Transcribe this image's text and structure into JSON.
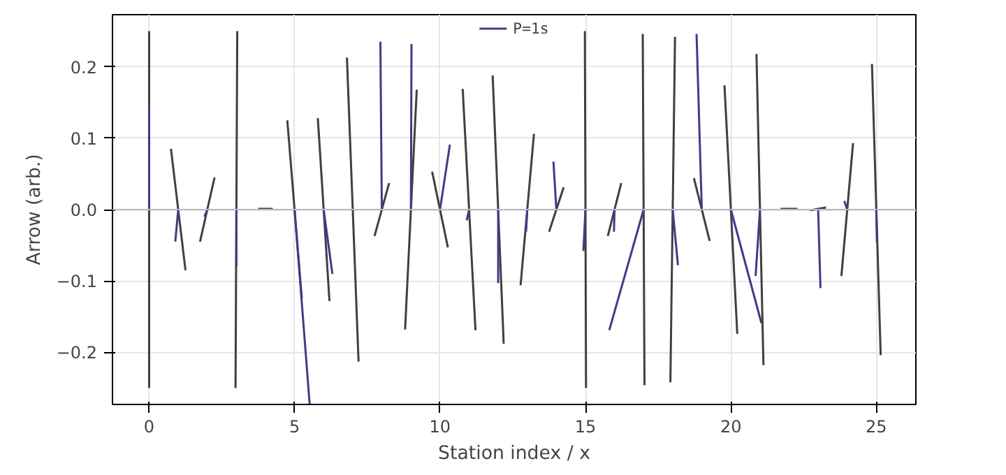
{
  "chart_data": {
    "type": "line",
    "xlabel": "Station index / x",
    "ylabel": "Arrow (arb.)",
    "xlim": [
      -1.26,
      26.36
    ],
    "ylim": [
      -0.273,
      0.273
    ],
    "xticks": [
      0,
      5,
      10,
      15,
      20,
      25
    ],
    "yticks": [
      {
        "value": -0.2,
        "label": "−0.2"
      },
      {
        "value": -0.1,
        "label": "−0.1"
      },
      {
        "value": 0.0,
        "label": "0.0"
      },
      {
        "value": 0.1,
        "label": "0.1"
      },
      {
        "value": 0.2,
        "label": "0.2"
      }
    ],
    "grid": true,
    "legend": "top",
    "marker": "none",
    "line_style": "solid",
    "ref_lines": [
      {
        "axis": "y",
        "value": 0,
        "color": "#bbbbbb"
      }
    ],
    "series": [
      {
        "color": "#404040",
        "x": [
          0,
          0,
          null,
          0.75,
          1.25,
          null,
          1.75,
          2.25,
          null,
          2.97,
          3.03,
          null,
          3.75,
          4.25,
          null,
          5.25,
          4.75,
          null,
          6.2,
          5.8,
          null,
          7.2,
          6.8,
          null,
          7.75,
          8.25,
          null,
          8.8,
          9.2,
          null,
          10.27,
          9.73,
          null,
          11.22,
          10.78,
          null,
          12.19,
          11.81,
          null,
          12.77,
          13.23,
          null,
          13.75,
          14.25,
          null,
          15.02,
          14.98,
          null,
          15.77,
          16.23,
          null,
          17.03,
          16.97,
          null,
          17.92,
          18.08,
          null,
          19.27,
          18.73,
          null,
          20.22,
          19.78,
          null,
          21.12,
          20.88,
          null,
          21.71,
          22.29,
          null,
          22.73,
          23.27,
          null,
          23.8,
          24.2,
          null,
          25.15,
          24.85
        ],
        "values": [
          -0.25,
          0.25,
          null,
          0.085,
          -0.085,
          null,
          -0.045,
          0.045,
          null,
          -0.25,
          0.25,
          null,
          0.001,
          0.001,
          null,
          -0.125,
          0.125,
          null,
          -0.128,
          0.128,
          null,
          -0.213,
          0.213,
          null,
          -0.037,
          0.037,
          null,
          -0.168,
          0.168,
          null,
          -0.053,
          0.053,
          null,
          -0.169,
          0.169,
          null,
          -0.188,
          0.188,
          null,
          -0.106,
          0.106,
          null,
          -0.031,
          0.031,
          null,
          -0.25,
          0.25,
          null,
          -0.037,
          0.037,
          null,
          -0.246,
          0.246,
          null,
          -0.242,
          0.242,
          null,
          -0.044,
          0.044,
          null,
          -0.174,
          0.174,
          null,
          -0.218,
          0.218,
          null,
          0.001,
          0.001,
          null,
          -0.001,
          0.003,
          null,
          -0.093,
          0.093,
          null,
          -0.204,
          0.204
        ]
      },
      {
        "name": "P=1s",
        "color": "#433a88",
        "x": [
          0,
          0,
          null,
          1,
          0.9,
          null,
          2,
          1.9,
          null,
          3,
          3,
          null,
          5,
          5.52,
          null,
          6,
          6.3,
          null,
          8,
          7.95,
          null,
          9,
          9.02,
          null,
          10,
          10.34,
          null,
          11,
          10.92,
          null,
          12,
          12,
          null,
          13,
          12.96,
          null,
          14,
          13.9,
          null,
          15,
          14.93,
          null,
          16,
          15.98,
          null,
          17,
          15.82,
          null,
          18,
          18.18,
          null,
          19,
          18.82,
          null,
          20,
          21.05,
          null,
          21,
          20.85,
          null,
          23,
          23.08,
          null,
          24,
          23.9,
          null,
          25,
          25.02
        ],
        "values": [
          0,
          0.145,
          null,
          0,
          -0.045,
          null,
          0,
          -0.01,
          null,
          0,
          -0.08,
          null,
          0,
          -0.273,
          null,
          0,
          -0.09,
          null,
          0,
          0.235,
          null,
          0,
          0.232,
          null,
          0,
          0.091,
          null,
          0,
          -0.015,
          null,
          0,
          -0.103,
          null,
          0,
          -0.031,
          null,
          0,
          0.067,
          null,
          0,
          -0.058,
          null,
          0,
          -0.031,
          null,
          0,
          -0.169,
          null,
          0,
          -0.078,
          null,
          0,
          0.246,
          null,
          0,
          -0.159,
          null,
          0,
          -0.093,
          null,
          0,
          -0.11,
          null,
          0,
          0.012,
          null,
          0,
          -0.046
        ]
      }
    ]
  }
}
